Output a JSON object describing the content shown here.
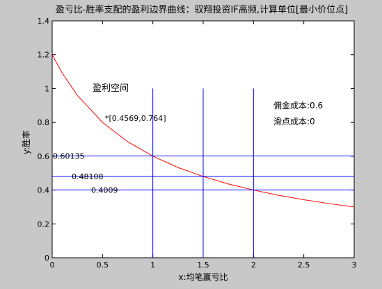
{
  "chart_data": {
    "type": "line",
    "title": "盈亏比-胜率支配的盈利边界曲线：驭翔投资IF高频,计算单位[最小价位点]",
    "xlabel": "x:均笔赢亏比",
    "ylabel": "y:胜率",
    "xlim": [
      0,
      3
    ],
    "ylim": [
      0,
      1.4
    ],
    "xticks": [
      0,
      0.5,
      1,
      1.5,
      2,
      2.5,
      3
    ],
    "yticks": [
      0,
      0.2,
      0.4,
      0.6,
      0.8,
      1,
      1.2,
      1.4
    ],
    "series": [
      {
        "color": "#ff0000",
        "x": [
          0,
          0.1,
          0.25,
          0.5,
          0.75,
          1,
          1.25,
          1.5,
          1.75,
          2,
          2.25,
          2.5,
          2.75,
          3
        ],
        "values": [
          1.2,
          1.0909,
          0.96,
          0.8,
          0.6857,
          0.6,
          0.5333,
          0.48,
          0.4364,
          0.4,
          0.3692,
          0.3429,
          0.32,
          0.3
        ]
      }
    ],
    "hlines": {
      "color": "#0000ff",
      "values": [
        0.60135,
        0.48108,
        0.4009
      ]
    },
    "vlines": {
      "color": "#0000ff",
      "values": [
        1,
        1.5,
        2
      ],
      "top": 1
    },
    "annotations": [
      "盈利空间",
      "*[0.4569,0.764]",
      "佣金成本:0.6",
      "滑点成本:0"
    ]
  }
}
